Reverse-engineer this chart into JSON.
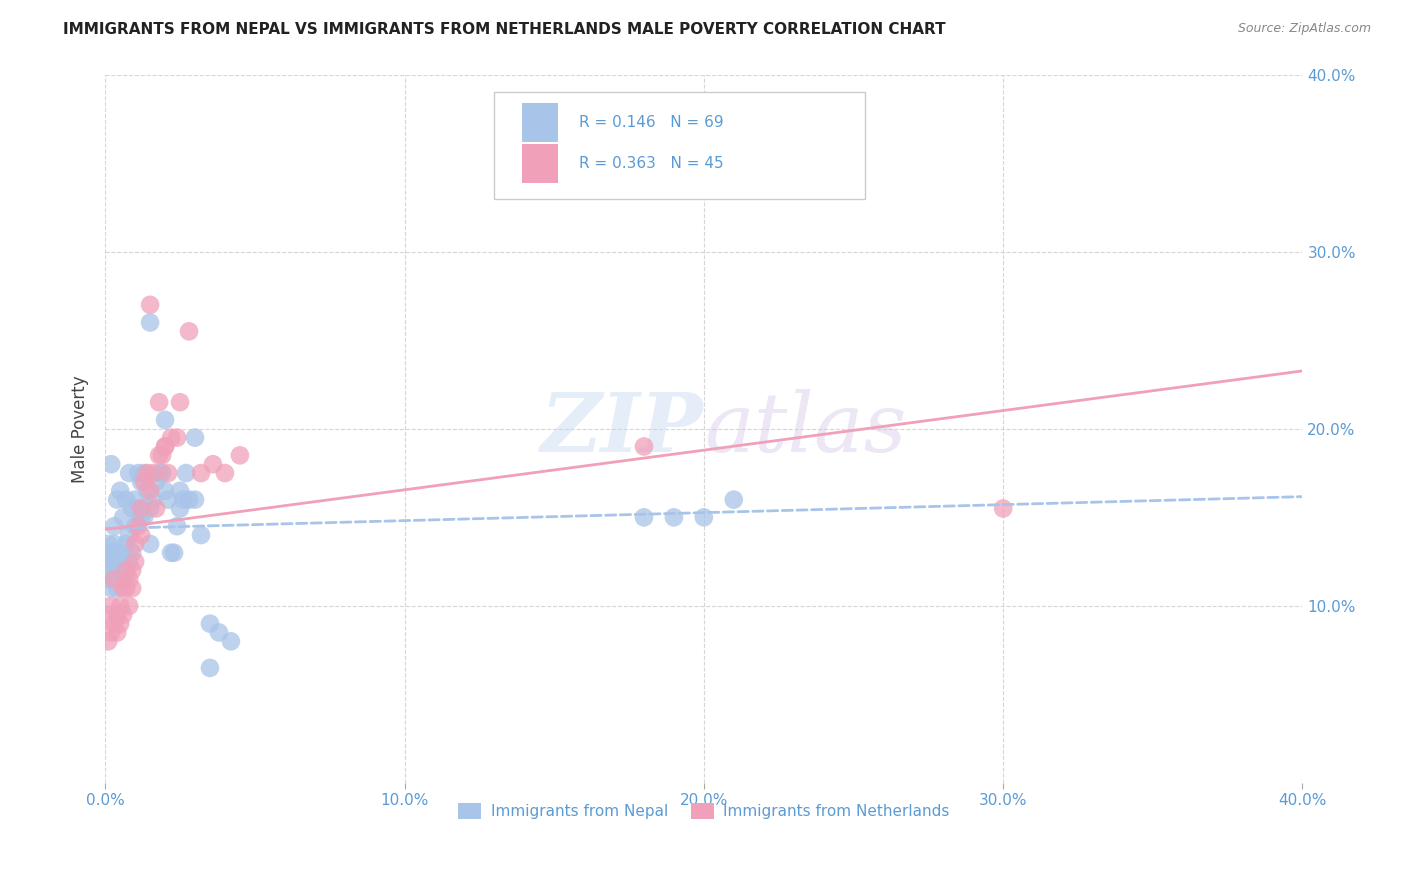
{
  "title": "IMMIGRANTS FROM NEPAL VS IMMIGRANTS FROM NETHERLANDS MALE POVERTY CORRELATION CHART",
  "source": "Source: ZipAtlas.com",
  "ylabel": "Male Poverty",
  "xlim": [
    0.0,
    0.4
  ],
  "ylim": [
    0.0,
    0.4
  ],
  "xticks": [
    0.0,
    0.1,
    0.2,
    0.3,
    0.4
  ],
  "yticks": [
    0.1,
    0.2,
    0.3,
    0.4
  ],
  "xtick_labels": [
    "0.0%",
    "10.0%",
    "20.0%",
    "30.0%",
    "40.0%"
  ],
  "right_ytick_labels": [
    "10.0%",
    "20.0%",
    "30.0%",
    "40.0%"
  ],
  "nepal_color": "#a8c4e8",
  "netherlands_color": "#f0a0b8",
  "nepal_R": 0.146,
  "nepal_N": 69,
  "netherlands_R": 0.363,
  "netherlands_N": 45,
  "watermark_zip": "ZIP",
  "watermark_atlas": "atlas",
  "nepal_scatter_x": [
    0.001,
    0.001,
    0.001,
    0.002,
    0.002,
    0.002,
    0.002,
    0.003,
    0.003,
    0.003,
    0.003,
    0.004,
    0.004,
    0.004,
    0.004,
    0.005,
    0.005,
    0.005,
    0.005,
    0.006,
    0.006,
    0.006,
    0.006,
    0.007,
    0.007,
    0.007,
    0.008,
    0.008,
    0.008,
    0.009,
    0.009,
    0.01,
    0.01,
    0.011,
    0.011,
    0.012,
    0.012,
    0.013,
    0.013,
    0.014,
    0.015,
    0.015,
    0.016,
    0.017,
    0.018,
    0.019,
    0.02,
    0.021,
    0.022,
    0.023,
    0.024,
    0.025,
    0.026,
    0.027,
    0.028,
    0.03,
    0.032,
    0.035,
    0.038,
    0.042,
    0.015,
    0.02,
    0.025,
    0.03,
    0.035,
    0.18,
    0.19,
    0.2,
    0.21
  ],
  "nepal_scatter_y": [
    0.115,
    0.125,
    0.135,
    0.11,
    0.12,
    0.13,
    0.18,
    0.115,
    0.125,
    0.135,
    0.145,
    0.11,
    0.12,
    0.13,
    0.16,
    0.115,
    0.12,
    0.125,
    0.165,
    0.12,
    0.13,
    0.115,
    0.15,
    0.12,
    0.135,
    0.16,
    0.125,
    0.14,
    0.175,
    0.13,
    0.155,
    0.145,
    0.16,
    0.155,
    0.175,
    0.15,
    0.17,
    0.15,
    0.175,
    0.165,
    0.155,
    0.135,
    0.16,
    0.17,
    0.175,
    0.175,
    0.165,
    0.16,
    0.13,
    0.13,
    0.145,
    0.155,
    0.16,
    0.175,
    0.16,
    0.16,
    0.14,
    0.09,
    0.085,
    0.08,
    0.26,
    0.205,
    0.165,
    0.195,
    0.065,
    0.15,
    0.15,
    0.15,
    0.16
  ],
  "netherlands_scatter_x": [
    0.001,
    0.001,
    0.002,
    0.002,
    0.003,
    0.003,
    0.004,
    0.004,
    0.005,
    0.005,
    0.006,
    0.006,
    0.007,
    0.007,
    0.008,
    0.008,
    0.009,
    0.009,
    0.01,
    0.01,
    0.011,
    0.012,
    0.012,
    0.013,
    0.014,
    0.015,
    0.016,
    0.018,
    0.02,
    0.022,
    0.025,
    0.028,
    0.032,
    0.036,
    0.04,
    0.045,
    0.017,
    0.019,
    0.021,
    0.024,
    0.015,
    0.018,
    0.02,
    0.3,
    0.18
  ],
  "netherlands_scatter_y": [
    0.095,
    0.08,
    0.1,
    0.085,
    0.115,
    0.09,
    0.095,
    0.085,
    0.1,
    0.09,
    0.11,
    0.095,
    0.12,
    0.11,
    0.115,
    0.1,
    0.12,
    0.11,
    0.135,
    0.125,
    0.145,
    0.155,
    0.14,
    0.17,
    0.175,
    0.165,
    0.175,
    0.185,
    0.19,
    0.195,
    0.215,
    0.255,
    0.175,
    0.18,
    0.175,
    0.185,
    0.155,
    0.185,
    0.175,
    0.195,
    0.27,
    0.215,
    0.19,
    0.155,
    0.19
  ],
  "background_color": "#ffffff",
  "grid_color": "#cccccc",
  "title_color": "#222222",
  "tick_color": "#5b9bd5"
}
